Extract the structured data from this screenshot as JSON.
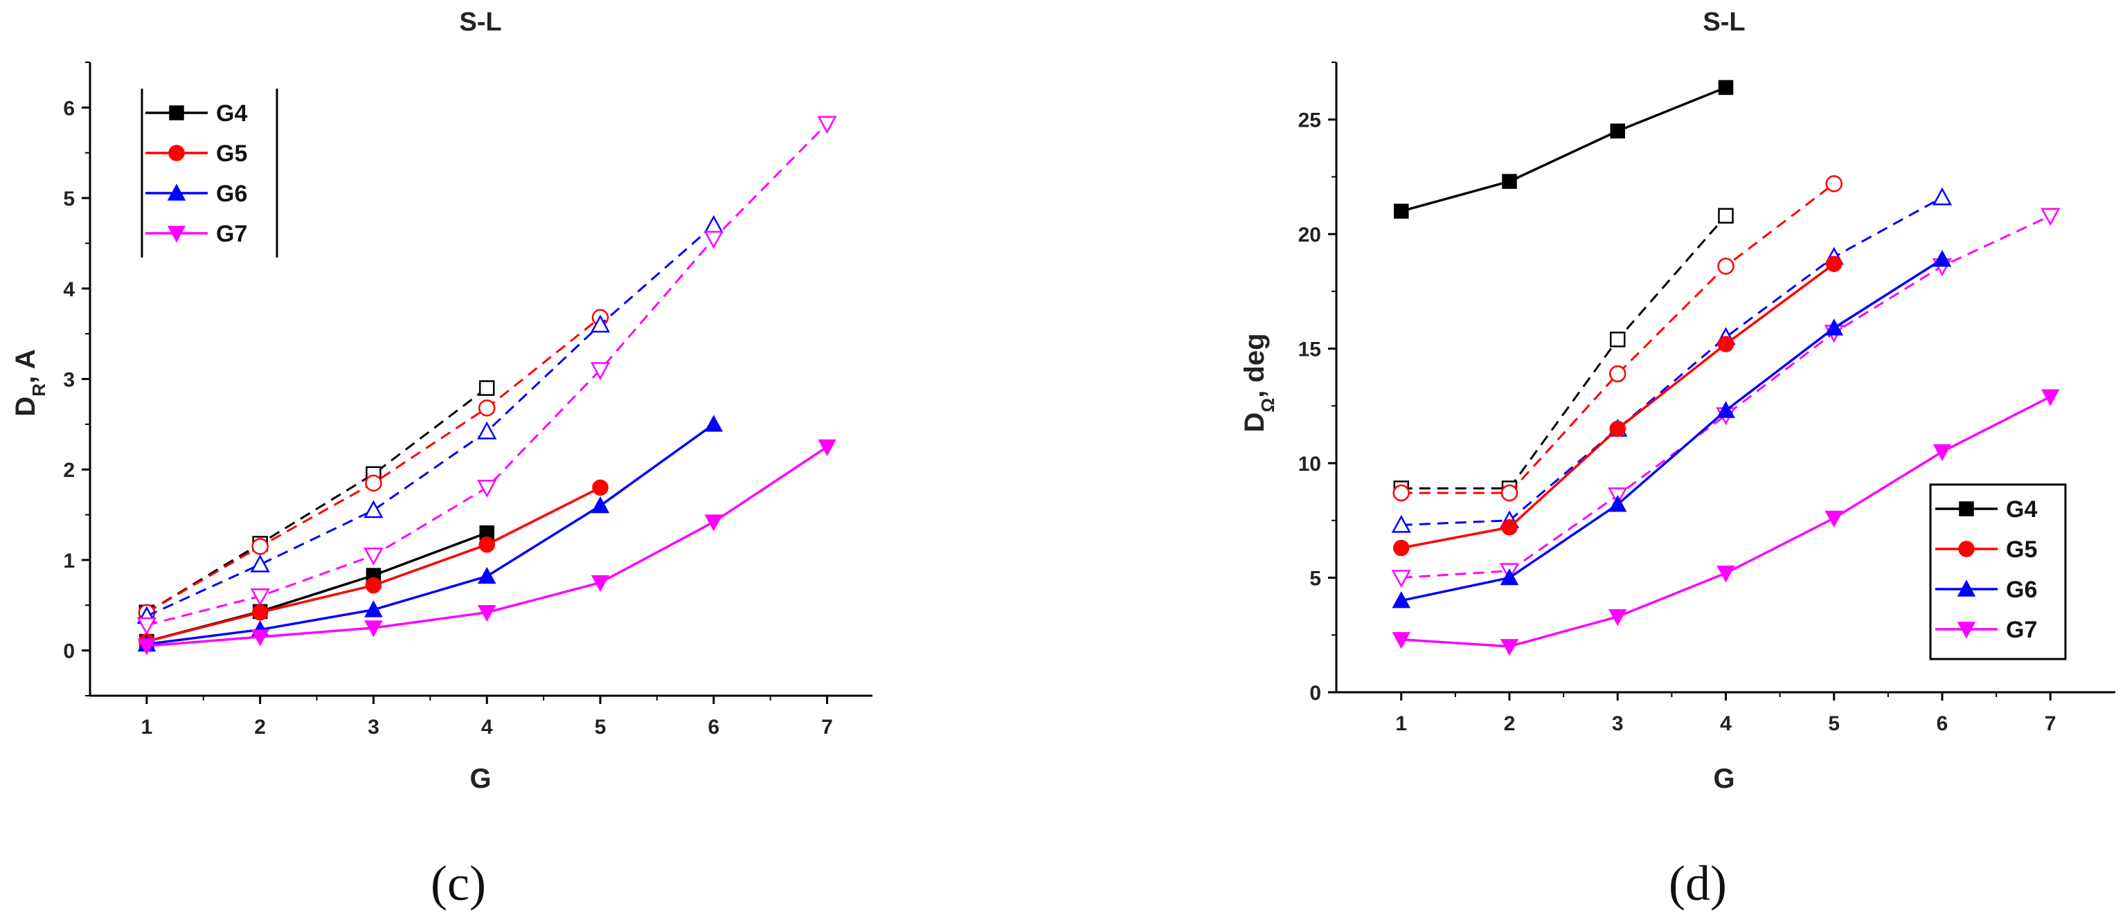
{
  "panels": [
    {
      "label": "(c)",
      "chart_data": {
        "type": "line",
        "title": "S-L",
        "xlabel": "G",
        "ylabel_main": "D",
        "ylabel_sub": "R",
        "ylabel_tail": ", A",
        "xlim": [
          0.5,
          7.4
        ],
        "ylim": [
          -0.5,
          6.5
        ],
        "xticks": [
          "1",
          "2",
          "3",
          "4",
          "5",
          "6",
          "7"
        ],
        "yticks": [
          "0",
          "1",
          "2",
          "3",
          "4",
          "5",
          "6"
        ],
        "legend_position": "top-left",
        "series": [
          {
            "name": "G4",
            "color": "#000000",
            "marker": "square",
            "style": "solid",
            "x": [
              1,
              2,
              3,
              4
            ],
            "values": [
              0.1,
              0.43,
              0.83,
              1.3
            ]
          },
          {
            "name": "G5",
            "color": "#ff0000",
            "marker": "circle",
            "style": "solid",
            "x": [
              1,
              2,
              3,
              4,
              5
            ],
            "values": [
              0.1,
              0.42,
              0.72,
              1.17,
              1.8
            ]
          },
          {
            "name": "G6",
            "color": "#0000ff",
            "marker": "triangle-up",
            "style": "solid",
            "x": [
              1,
              2,
              3,
              4,
              5,
              6
            ],
            "values": [
              0.07,
              0.23,
              0.45,
              0.82,
              1.6,
              2.5
            ]
          },
          {
            "name": "G7",
            "color": "#ff00ff",
            "marker": "triangle-down",
            "style": "solid",
            "x": [
              1,
              2,
              3,
              4,
              5,
              6,
              7
            ],
            "values": [
              0.05,
              0.15,
              0.25,
              0.42,
              0.75,
              1.42,
              2.25
            ]
          },
          {
            "name": "G4 open",
            "color": "#000000",
            "marker": "square-open",
            "style": "dashed",
            "x": [
              1,
              2,
              3,
              4
            ],
            "values": [
              0.42,
              1.18,
              1.95,
              2.9
            ]
          },
          {
            "name": "G5 open",
            "color": "#ff0000",
            "marker": "circle-open",
            "style": "dashed",
            "x": [
              1,
              2,
              3,
              4,
              5
            ],
            "values": [
              0.42,
              1.15,
              1.85,
              2.68,
              3.68
            ]
          },
          {
            "name": "G6 open",
            "color": "#0000ff",
            "marker": "triangle-up-open",
            "style": "dashed",
            "x": [
              1,
              2,
              3,
              4,
              5,
              6
            ],
            "values": [
              0.38,
              0.95,
              1.55,
              2.42,
              3.6,
              4.7
            ]
          },
          {
            "name": "G7 open",
            "color": "#ff00ff",
            "marker": "triangle-down-open",
            "style": "dashed",
            "x": [
              1,
              2,
              3,
              4,
              5,
              6,
              7
            ],
            "values": [
              0.28,
              0.6,
              1.05,
              1.8,
              3.1,
              4.55,
              5.82
            ]
          }
        ]
      }
    },
    {
      "label": "(d)",
      "chart_data": {
        "type": "line",
        "title": "S-L",
        "xlabel": "G",
        "ylabel_main": "D",
        "ylabel_sub": "Ω",
        "ylabel_tail": ", deg",
        "xlim": [
          0.4,
          7.6
        ],
        "ylim": [
          0,
          27.5
        ],
        "xticks": [
          "1",
          "2",
          "3",
          "4",
          "5",
          "6",
          "7"
        ],
        "yticks": [
          "0",
          "5",
          "10",
          "15",
          "20",
          "25"
        ],
        "legend_position": "bottom-right",
        "series": [
          {
            "name": "G4",
            "color": "#000000",
            "marker": "square",
            "style": "solid",
            "x": [
              1,
              2,
              3,
              4
            ],
            "values": [
              21.0,
              22.3,
              24.5,
              26.4
            ]
          },
          {
            "name": "G5",
            "color": "#ff0000",
            "marker": "circle",
            "style": "solid",
            "x": [
              1,
              2,
              3,
              4,
              5
            ],
            "values": [
              6.3,
              7.2,
              11.5,
              15.2,
              18.7
            ]
          },
          {
            "name": "G6",
            "color": "#0000ff",
            "marker": "triangle-up",
            "style": "solid",
            "x": [
              1,
              2,
              3,
              4,
              5,
              6
            ],
            "values": [
              4.0,
              5.0,
              8.2,
              12.3,
              15.9,
              18.9
            ]
          },
          {
            "name": "G7",
            "color": "#ff00ff",
            "marker": "triangle-down",
            "style": "solid",
            "x": [
              1,
              2,
              3,
              4,
              5,
              6,
              7
            ],
            "values": [
              2.3,
              2.0,
              3.3,
              5.2,
              7.6,
              10.5,
              12.9
            ]
          },
          {
            "name": "G4 open",
            "color": "#000000",
            "marker": "square-open",
            "style": "dashed",
            "x": [
              1,
              2,
              3,
              4
            ],
            "values": [
              8.9,
              8.9,
              15.4,
              20.8
            ]
          },
          {
            "name": "G5 open",
            "color": "#ff0000",
            "marker": "circle-open",
            "style": "dashed",
            "x": [
              1,
              2,
              3,
              4,
              5
            ],
            "values": [
              8.7,
              8.7,
              13.9,
              18.6,
              22.2
            ]
          },
          {
            "name": "G6 open",
            "color": "#0000ff",
            "marker": "triangle-up-open",
            "style": "dashed",
            "x": [
              1,
              2,
              3,
              4,
              5,
              6
            ],
            "values": [
              7.3,
              7.5,
              11.5,
              15.5,
              19.0,
              21.6
            ]
          },
          {
            "name": "G7 open",
            "color": "#ff00ff",
            "marker": "triangle-down-open",
            "style": "dashed",
            "x": [
              1,
              2,
              3,
              4,
              5,
              6,
              7
            ],
            "values": [
              5.0,
              5.3,
              8.6,
              12.1,
              15.7,
              18.6,
              20.8
            ]
          }
        ]
      }
    }
  ],
  "legend_entries": [
    "G4",
    "G5",
    "G6",
    "G7"
  ]
}
